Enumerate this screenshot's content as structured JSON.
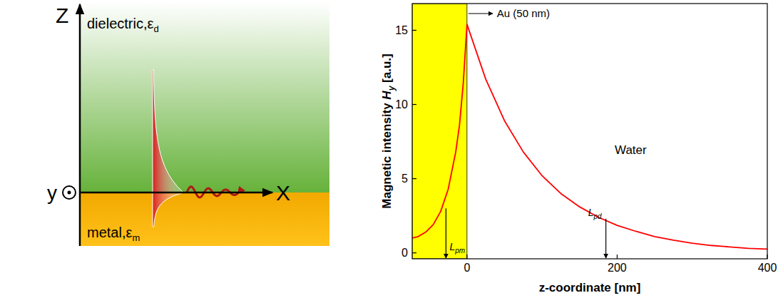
{
  "chart_data": {
    "type": "line",
    "x": [
      -73,
      -65,
      -55,
      -45,
      -35,
      -25,
      -15,
      -10,
      -5,
      0,
      25,
      50,
      75,
      100,
      125,
      150,
      175,
      200,
      225,
      250,
      275,
      300,
      325,
      350,
      375,
      400
    ],
    "series": [
      {
        "color": "#ff0000",
        "values": [
          1.0,
          1.1,
          1.4,
          1.9,
          2.8,
          4.3,
          6.8,
          8.6,
          11.4,
          15.4,
          11.7,
          8.9,
          6.8,
          5.2,
          4.0,
          3.1,
          2.4,
          1.85,
          1.45,
          1.1,
          0.85,
          0.65,
          0.5,
          0.4,
          0.3,
          0.25
        ]
      }
    ],
    "x_label": "z-coordinate [nm]",
    "y_label": {
      "text": "Magnetic intensity ",
      "var": "H",
      "sub": "y",
      "unit": " [a.u.]"
    },
    "xlim": [
      -73,
      400
    ],
    "ylim": [
      -0.4,
      16.8
    ],
    "xticks": [
      0,
      200,
      400
    ],
    "yticks": [
      0,
      5,
      10,
      15
    ],
    "grid": false,
    "regions": [
      {
        "range": [
          -73,
          0
        ],
        "color": "#ffff00"
      }
    ],
    "annotations": [
      {
        "text": "Au (50 nm)"
      },
      {
        "text": "Water"
      },
      {
        "text": "L",
        "sub": "pm",
        "x": -28,
        "y": 3.0
      },
      {
        "text": "L",
        "sub": "pd",
        "x": 185,
        "y": 2.3
      }
    ]
  },
  "diagram": {
    "axis_z": "Z",
    "axis_x": "X",
    "axis_y": "y",
    "dielectric": {
      "text": "dielectric,ε",
      "sub": "d"
    },
    "metal": {
      "text": "metal,ε",
      "sub": "m"
    }
  }
}
